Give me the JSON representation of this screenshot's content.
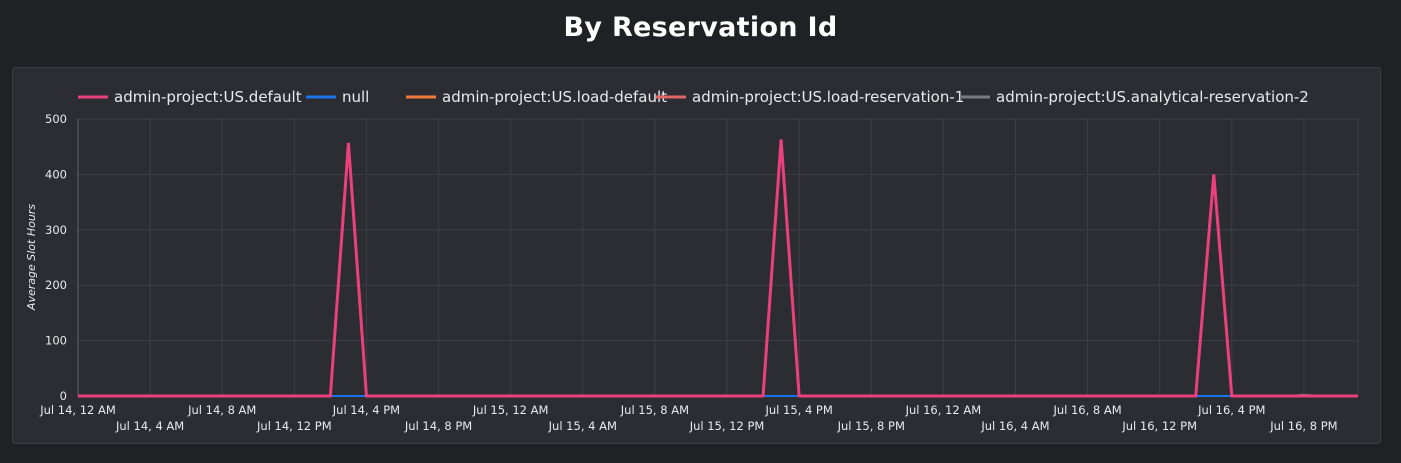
{
  "title": "By Reservation Id",
  "colors": {
    "background": "#202124",
    "panel": "#2b2d33",
    "grid": "#3c3f46"
  },
  "chart_data": {
    "type": "line",
    "title": "By Reservation Id",
    "xlabel": "",
    "ylabel": "Average Slot Hours",
    "ylim": [
      0,
      500
    ],
    "yticks": [
      0,
      100,
      200,
      300,
      400,
      500
    ],
    "xlim": [
      "2023-07-14T00:00",
      "2023-07-16T23:00"
    ],
    "x_tick_labels": [
      "Jul 14, 12 AM",
      "Jul 14, 4 AM",
      "Jul 14, 8 AM",
      "Jul 14, 12 PM",
      "Jul 14, 4 PM",
      "Jul 14, 8 PM",
      "Jul 15, 12 AM",
      "Jul 15, 4 AM",
      "Jul 15, 8 AM",
      "Jul 15, 12 PM",
      "Jul 15, 4 PM",
      "Jul 15, 8 PM",
      "Jul 16, 12 AM",
      "Jul 16, 4 AM",
      "Jul 16, 8 AM",
      "Jul 16, 12 PM",
      "Jul 16, 4 PM",
      "Jul 16, 8 PM"
    ],
    "grid": true,
    "legend_position": "top-left",
    "series": [
      {
        "name": "admin-project:US.default",
        "color": "#ec407a",
        "points": [
          {
            "x": "2023-07-14T00:00",
            "y": 0
          },
          {
            "x": "2023-07-14T14:00",
            "y": 0
          },
          {
            "x": "2023-07-14T15:00",
            "y": 457
          },
          {
            "x": "2023-07-14T16:00",
            "y": 0
          },
          {
            "x": "2023-07-15T14:00",
            "y": 0
          },
          {
            "x": "2023-07-15T15:00",
            "y": 463
          },
          {
            "x": "2023-07-15T16:00",
            "y": 0
          },
          {
            "x": "2023-07-16T14:00",
            "y": 0
          },
          {
            "x": "2023-07-16T15:00",
            "y": 400
          },
          {
            "x": "2023-07-16T16:00",
            "y": 0
          },
          {
            "x": "2023-07-16T23:00",
            "y": 0
          }
        ]
      },
      {
        "name": "null",
        "color": "#1a73e8",
        "points": [
          {
            "x": "2023-07-14T00:00",
            "y": 0
          },
          {
            "x": "2023-07-16T23:00",
            "y": 0
          }
        ]
      },
      {
        "name": "admin-project:US.load-default",
        "color": "#f07c3c",
        "points": [
          {
            "x": "2023-07-14T00:00",
            "y": 0
          },
          {
            "x": "2023-07-16T23:00",
            "y": 0
          }
        ]
      },
      {
        "name": "admin-project:US.load-reservation-1",
        "color": "#e06666",
        "points": [
          {
            "x": "2023-07-14T00:00",
            "y": 0
          },
          {
            "x": "2023-07-16T23:00",
            "y": 0
          }
        ]
      },
      {
        "name": "admin-project:US.analytical-reservation-2",
        "color": "#777b80",
        "points": [
          {
            "x": "2023-07-14T00:00",
            "y": 0
          },
          {
            "x": "2023-07-16T19:00",
            "y": 0
          },
          {
            "x": "2023-07-16T20:00",
            "y": 2
          },
          {
            "x": "2023-07-16T21:00",
            "y": 0
          },
          {
            "x": "2023-07-16T23:00",
            "y": 0
          }
        ]
      }
    ]
  }
}
